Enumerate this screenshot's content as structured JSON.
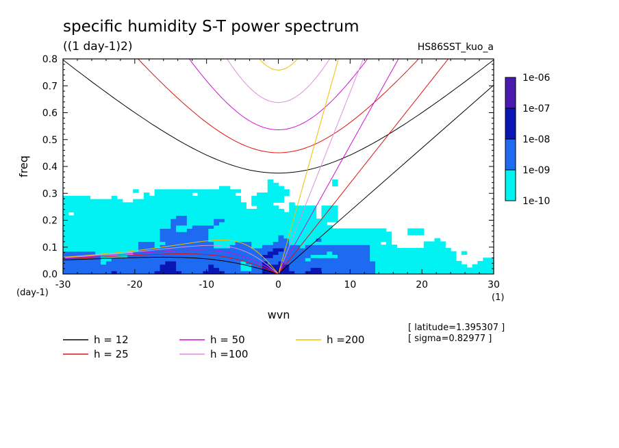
{
  "title": "specific humidity S-T power spectrum",
  "subtitle": "((1 day-1)2)",
  "run_label": "HS86SST_kuo_a",
  "chart_data": {
    "type": "heatmap",
    "title": "specific humidity S-T power spectrum",
    "units": "((1 day-1)2)",
    "xlabel": "wvn",
    "ylabel": "freq",
    "x_unit": "(1)",
    "y_unit": "(day-1)",
    "xlim": [
      -30,
      30
    ],
    "ylim": [
      0,
      0.8
    ],
    "xticks": [
      "-30",
      "-20",
      "-10",
      "0",
      "10",
      "20",
      "30"
    ],
    "yticks": [
      "0.0",
      "0.1",
      "0.2",
      "0.3",
      "0.4",
      "0.5",
      "0.6",
      "0.7",
      "0.8"
    ],
    "grid": false,
    "colorbar": {
      "levels": [
        "1e-06",
        "1e-07",
        "1e-08",
        "1e-09",
        "1e-10"
      ],
      "colors": [
        "#4a1ab0",
        "#0a16b4",
        "#1e6af0",
        "#00f2f2"
      ]
    },
    "dispersion_curves": [
      {
        "name": "h = 12",
        "color": "#000000"
      },
      {
        "name": "h = 25",
        "color": "#e01010"
      },
      {
        "name": "h = 50",
        "color": "#d010d0"
      },
      {
        "name": "h =100",
        "color": "#e08ce0"
      },
      {
        "name": "h =200",
        "color": "#f0c000"
      }
    ],
    "annotations": [
      "[ latitude=1.395307 ]",
      "[ sigma=0.82977 ]"
    ]
  }
}
